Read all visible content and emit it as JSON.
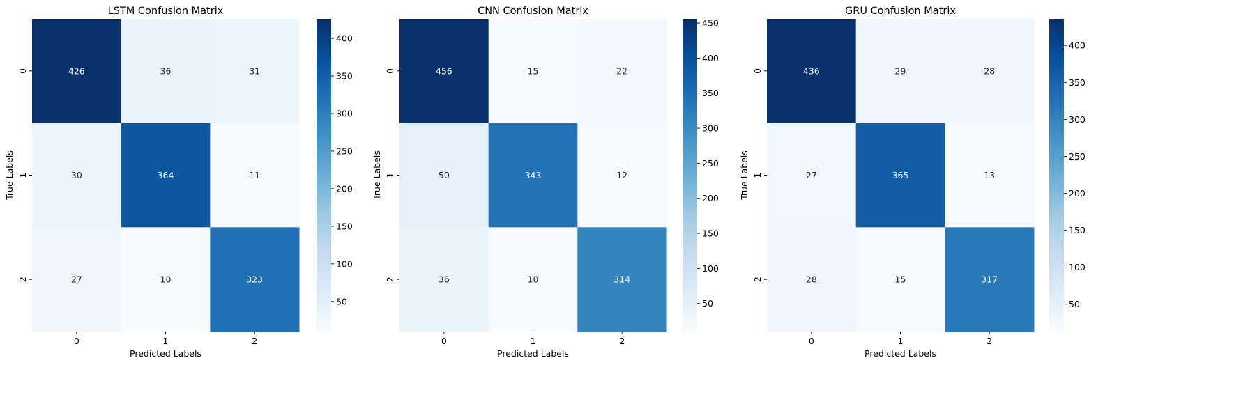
{
  "chart_data": [
    {
      "type": "heatmap",
      "title": "LSTM Confusion Matrix",
      "xlabel": "Predicted Labels",
      "ylabel": "True Labels",
      "x_categories": [
        "0",
        "1",
        "2"
      ],
      "y_categories": [
        "0",
        "1",
        "2"
      ],
      "values": [
        [
          426,
          36,
          31
        ],
        [
          30,
          364,
          11
        ],
        [
          27,
          10,
          323
        ]
      ],
      "colormap": "Blues",
      "colorbar_ticks": [
        50,
        100,
        150,
        200,
        250,
        300,
        350,
        400
      ]
    },
    {
      "type": "heatmap",
      "title": "CNN Confusion Matrix",
      "xlabel": "Predicted Labels",
      "ylabel": "True Labels",
      "x_categories": [
        "0",
        "1",
        "2"
      ],
      "y_categories": [
        "0",
        "1",
        "2"
      ],
      "values": [
        [
          456,
          15,
          22
        ],
        [
          50,
          343,
          12
        ],
        [
          36,
          10,
          314
        ]
      ],
      "colormap": "Blues",
      "colorbar_ticks": [
        50,
        100,
        150,
        200,
        250,
        300,
        350,
        400,
        450
      ]
    },
    {
      "type": "heatmap",
      "title": "GRU Confusion Matrix",
      "xlabel": "Predicted Labels",
      "ylabel": "True Labels",
      "x_categories": [
        "0",
        "1",
        "2"
      ],
      "y_categories": [
        "0",
        "1",
        "2"
      ],
      "values": [
        [
          436,
          29,
          28
        ],
        [
          27,
          365,
          13
        ],
        [
          28,
          15,
          317
        ]
      ],
      "colormap": "Blues",
      "colorbar_ticks": [
        50,
        100,
        150,
        200,
        250,
        300,
        350,
        400
      ]
    }
  ]
}
